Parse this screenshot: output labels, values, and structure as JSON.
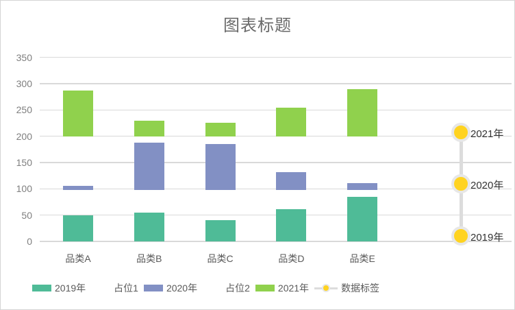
{
  "window": {
    "background": "#ffffff",
    "border_color": "#d4d4d4"
  },
  "styles": {
    "title_color": "#6a6a6a",
    "axis_tick_color": "#7f7f7f",
    "category_label_color": "#595959",
    "legend_text_color": "#595959",
    "grid_color": "#d9d9d9",
    "marker_label_color": "#333333"
  },
  "chart_data": {
    "type": "bar",
    "subtype": "layered-floating-columns",
    "title": "图表标题",
    "categories": [
      "品类A",
      "品类B",
      "品类C",
      "品类D",
      "品类E"
    ],
    "y_axis": {
      "min": 0,
      "max": 350,
      "tick_step": 50,
      "ticks": [
        350,
        300,
        250,
        200,
        150,
        100,
        50,
        0
      ]
    },
    "grid": true,
    "legend_position": "bottom-left",
    "series": [
      {
        "name": "2019年",
        "color": "#4FBB97",
        "segments": [
          [
            0,
            50
          ],
          [
            0,
            55
          ],
          [
            0,
            41
          ],
          [
            0,
            61
          ],
          [
            0,
            85
          ]
        ]
      },
      {
        "name": "占位1",
        "placeholder": true,
        "color": "transparent"
      },
      {
        "name": "2020年",
        "color": "#8290C4",
        "segments": [
          [
            98,
            106
          ],
          [
            98,
            188
          ],
          [
            98,
            185
          ],
          [
            98,
            132
          ],
          [
            98,
            111
          ]
        ]
      },
      {
        "name": "占位2",
        "placeholder": true,
        "color": "transparent"
      },
      {
        "name": "2021年",
        "color": "#90D14D",
        "segments": [
          [
            200,
            287
          ],
          [
            200,
            230
          ],
          [
            200,
            226
          ],
          [
            200,
            255
          ],
          [
            200,
            290
          ]
        ]
      }
    ],
    "timeline_markers": {
      "name": "数据标签",
      "dot_color": "#FFD320",
      "ring_color": "#E7E7E7",
      "line_color": "#DCDCDC",
      "points": [
        {
          "label": "2021年",
          "value": 207
        },
        {
          "label": "2020年",
          "value": 110
        },
        {
          "label": "2019年",
          "value": 10
        }
      ]
    },
    "legend": [
      {
        "label": "2019年",
        "swatch": "#4FBB97"
      },
      {
        "label": "占位1",
        "swatch": "transparent"
      },
      {
        "label": "2020年",
        "swatch": "#8290C4"
      },
      {
        "label": "占位2",
        "swatch": "transparent"
      },
      {
        "label": "2021年",
        "swatch": "#90D14D"
      },
      {
        "label": "数据标签",
        "marker": "line-dot"
      }
    ]
  }
}
